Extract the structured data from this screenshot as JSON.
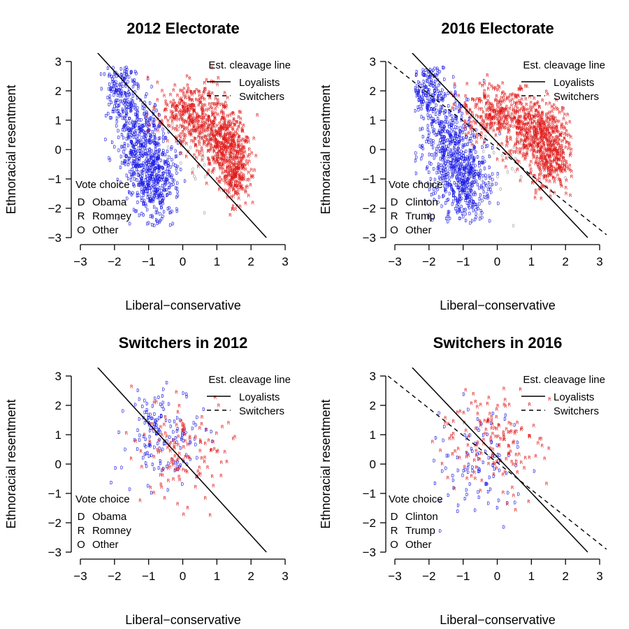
{
  "colors": {
    "dem": "#1f1fe6",
    "rep": "#e01b1b",
    "other": "#a8a8a8",
    "axis": "#000000"
  },
  "legend": {
    "cleavage_title": "Est. cleavage line",
    "loyalists": "Loyalists",
    "switchers": "Switchers",
    "vote_title": "Vote choice",
    "dem_marker": "D",
    "rep_marker": "R",
    "other_marker": "O"
  },
  "chart_data": [
    {
      "type": "scatter",
      "title": "2012 Electorate",
      "xlabel": "Liberal−conservative",
      "ylabel": "Ethnoracial resentment",
      "xlim": [
        -3,
        3
      ],
      "ylim": [
        -3,
        3
      ],
      "xticks": [
        "−3",
        "−2",
        "−1",
        "0",
        "1",
        "2",
        "3"
      ],
      "yticks": [
        "−3",
        "−2",
        "−1",
        "0",
        "1",
        "2",
        "3"
      ],
      "legend_entries": [
        "Obama",
        "Romney",
        "Other"
      ],
      "loyalist_line": {
        "x": [
          -2.5,
          2.45
        ],
        "y": [
          3.3,
          -3.0
        ]
      },
      "switcher_line": null,
      "series": [
        {
          "name": "Obama",
          "marker": "D",
          "approx_count": 900,
          "clusters": [
            {
              "x": -0.85,
              "y": -0.9,
              "sx": 0.35,
              "sy": 0.7,
              "n": 450
            },
            {
              "x": -1.3,
              "y": 0.5,
              "sx": 0.35,
              "sy": 0.7,
              "n": 300
            },
            {
              "x": -1.8,
              "y": 2.0,
              "sx": 0.25,
              "sy": 0.5,
              "n": 150
            }
          ]
        },
        {
          "name": "Romney",
          "marker": "R",
          "approx_count": 950,
          "clusters": [
            {
              "x": 1.2,
              "y": 0.2,
              "sx": 0.35,
              "sy": 0.6,
              "n": 400
            },
            {
              "x": 0.3,
              "y": 1.2,
              "sx": 0.5,
              "sy": 0.5,
              "n": 350
            },
            {
              "x": 1.6,
              "y": -0.8,
              "sx": 0.2,
              "sy": 0.5,
              "n": 200
            }
          ]
        },
        {
          "name": "Other",
          "marker": "O",
          "approx_count": 30,
          "clusters": [
            {
              "x": 0.4,
              "y": 0.0,
              "sx": 0.6,
              "sy": 0.9,
              "n": 30
            }
          ]
        }
      ]
    },
    {
      "type": "scatter",
      "title": "2016 Electorate",
      "xlabel": "Liberal−conservative",
      "ylabel": "Ethnoracial resentment",
      "xlim": [
        -3,
        3
      ],
      "ylim": [
        -3,
        3
      ],
      "xticks": [
        "−3",
        "−2",
        "−1",
        "0",
        "1",
        "2",
        "3"
      ],
      "yticks": [
        "−3",
        "−2",
        "−1",
        "0",
        "1",
        "2",
        "3"
      ],
      "legend_entries": [
        "Clinton",
        "Trump",
        "Other"
      ],
      "loyalist_line": {
        "x": [
          -2.5,
          2.65
        ],
        "y": [
          3.3,
          -3.0
        ]
      },
      "switcher_line": {
        "x": [
          -3.2,
          3.2
        ],
        "y": [
          3.0,
          -2.9
        ]
      },
      "series": [
        {
          "name": "Clinton",
          "marker": "D",
          "approx_count": 900,
          "clusters": [
            {
              "x": -1.0,
              "y": -1.0,
              "sx": 0.4,
              "sy": 0.65,
              "n": 450
            },
            {
              "x": -1.5,
              "y": 0.5,
              "sx": 0.4,
              "sy": 0.7,
              "n": 300
            },
            {
              "x": -2.0,
              "y": 2.0,
              "sx": 0.25,
              "sy": 0.45,
              "n": 150
            }
          ]
        },
        {
          "name": "Trump",
          "marker": "R",
          "approx_count": 950,
          "clusters": [
            {
              "x": 1.2,
              "y": 0.5,
              "sx": 0.45,
              "sy": 0.55,
              "n": 450
            },
            {
              "x": 0.0,
              "y": 1.3,
              "sx": 0.5,
              "sy": 0.5,
              "n": 300
            },
            {
              "x": 1.6,
              "y": -0.5,
              "sx": 0.3,
              "sy": 0.5,
              "n": 200
            }
          ]
        },
        {
          "name": "Other",
          "marker": "O",
          "approx_count": 30,
          "clusters": [
            {
              "x": 0.2,
              "y": -0.3,
              "sx": 0.7,
              "sy": 0.9,
              "n": 30
            }
          ]
        }
      ]
    },
    {
      "type": "scatter",
      "title": "Switchers in 2012",
      "xlabel": "Liberal−conservative",
      "ylabel": "Ethnoracial resentment",
      "xlim": [
        -3,
        3
      ],
      "ylim": [
        -3,
        3
      ],
      "xticks": [
        "−3",
        "−2",
        "−1",
        "0",
        "1",
        "2",
        "3"
      ],
      "yticks": [
        "−3",
        "−2",
        "−1",
        "0",
        "1",
        "2",
        "3"
      ],
      "legend_entries": [
        "Obama",
        "Romney",
        "Other"
      ],
      "loyalist_line": {
        "x": [
          -2.5,
          2.45
        ],
        "y": [
          3.3,
          -3.0
        ]
      },
      "switcher_line": null,
      "series": [
        {
          "name": "Obama",
          "marker": "D",
          "approx_count": 160,
          "clusters": [
            {
              "x": -0.7,
              "y": 0.9,
              "sx": 0.55,
              "sy": 0.8,
              "n": 160
            }
          ]
        },
        {
          "name": "Romney",
          "marker": "R",
          "approx_count": 130,
          "clusters": [
            {
              "x": 0.0,
              "y": 0.4,
              "sx": 0.7,
              "sy": 0.8,
              "n": 130
            }
          ]
        }
      ]
    },
    {
      "type": "scatter",
      "title": "Switchers in 2016",
      "xlabel": "Liberal−conservative",
      "ylabel": "Ethnoracial resentment",
      "xlim": [
        -3,
        3
      ],
      "ylim": [
        -3,
        3
      ],
      "xticks": [
        "−3",
        "−2",
        "−1",
        "0",
        "1",
        "2",
        "3"
      ],
      "yticks": [
        "−3",
        "−2",
        "−1",
        "0",
        "1",
        "2",
        "3"
      ],
      "legend_entries": [
        "Clinton",
        "Trump",
        "Other"
      ],
      "loyalist_line": {
        "x": [
          -2.5,
          2.65
        ],
        "y": [
          3.3,
          -3.0
        ]
      },
      "switcher_line": {
        "x": [
          -3.2,
          3.2
        ],
        "y": [
          3.0,
          -2.9
        ]
      },
      "series": [
        {
          "name": "Clinton",
          "marker": "D",
          "approx_count": 100,
          "clusters": [
            {
              "x": -0.5,
              "y": 0.1,
              "sx": 0.65,
              "sy": 0.9,
              "n": 100
            }
          ]
        },
        {
          "name": "Trump",
          "marker": "R",
          "approx_count": 160,
          "clusters": [
            {
              "x": -0.2,
              "y": 0.9,
              "sx": 0.75,
              "sy": 0.85,
              "n": 160
            }
          ]
        }
      ]
    }
  ]
}
